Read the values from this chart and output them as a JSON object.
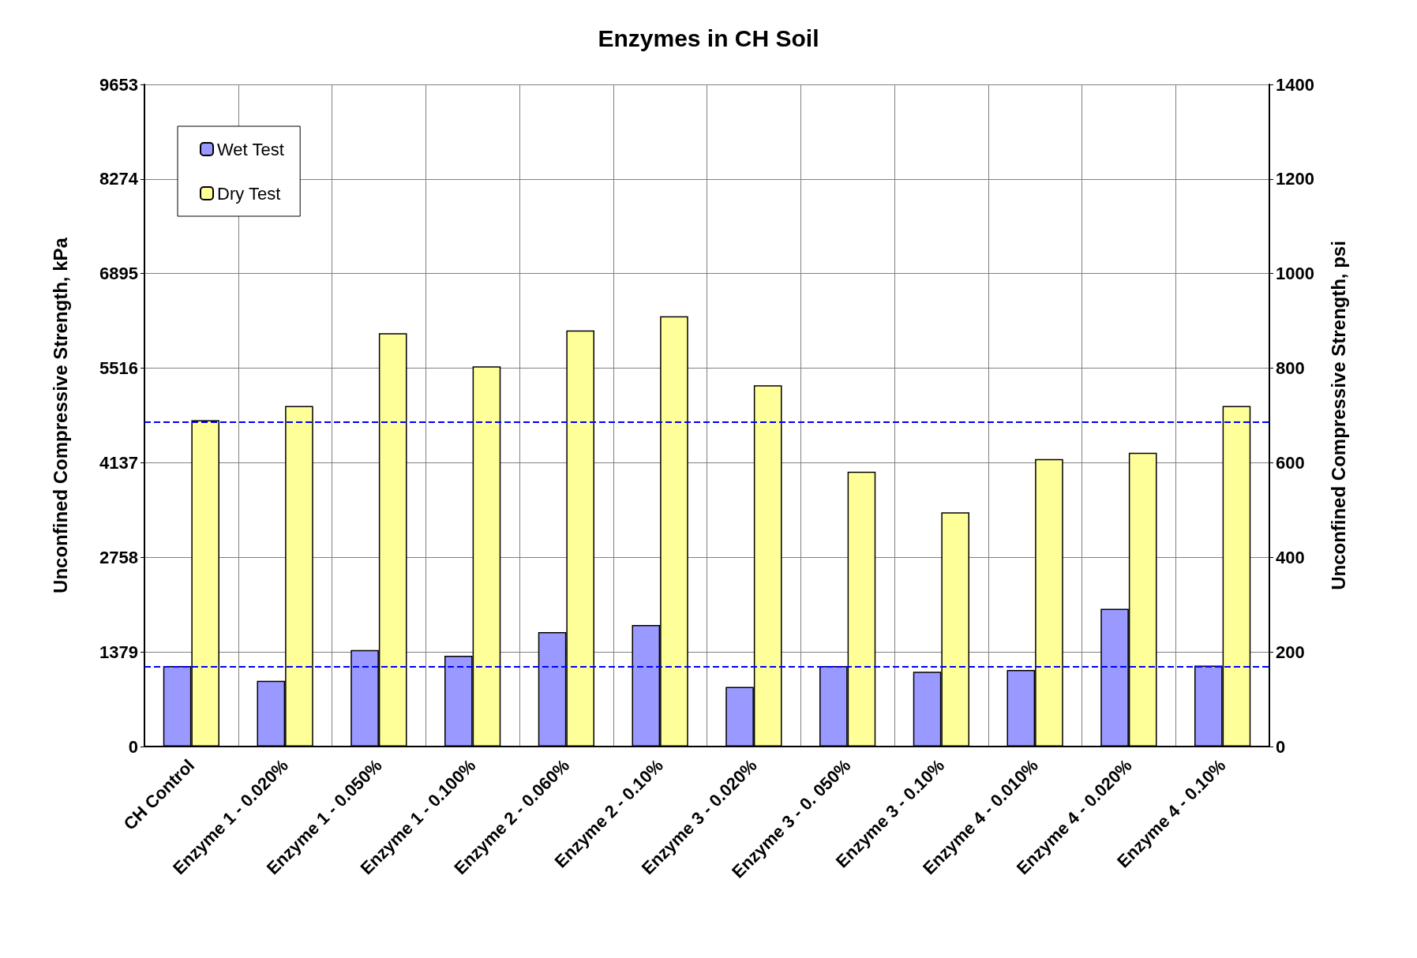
{
  "chart_data": {
    "type": "bar",
    "title": "Enzymes in CH Soil",
    "ylabel": "Unconfined Compressive Strength, kPa",
    "y2label": "Unconfined Compressive Strength, psi",
    "categories": [
      "CH Control",
      "Enzyme 1 - 0.020%",
      "Enzyme 1 - 0.050%",
      "Enzyme 1 - 0.100%",
      "Enzyme 2 - 0.060%",
      "Enzyme 2 - 0.10%",
      "Enzyme 3 - 0.020%",
      "Enzyme 3 - 0. 050%",
      "Enzyme 3 - 0.10%",
      "Enzyme 4 - 0.010%",
      "Enzyme 4 - 0.020%",
      "Enzyme 4 - 0.10%"
    ],
    "series": [
      {
        "name": "Wet Test",
        "color": "#9999ff",
        "axis": "y2",
        "values": [
          170,
          139,
          204,
          192,
          242,
          257,
          126,
          170,
          158,
          162,
          291,
          171
        ]
      },
      {
        "name": "Dry Test",
        "color": "#ffff99",
        "axis": "y2",
        "values": [
          690,
          720,
          874,
          804,
          880,
          910,
          764,
          581,
          495,
          608,
          621,
          720
        ]
      }
    ],
    "ylim": [
      0,
      9653
    ],
    "yticks": [
      0,
      1379,
      2758,
      4137,
      5516,
      6895,
      8274,
      9653
    ],
    "y2lim": [
      0,
      1400
    ],
    "y2ticks": [
      0,
      200,
      400,
      600,
      800,
      1000,
      1200,
      1400
    ],
    "ref_lines": [
      {
        "axis": "y2",
        "value": 686,
        "color": "#0000ff",
        "line_style": "dashed"
      },
      {
        "axis": "y2",
        "value": 169,
        "color": "#0000ff",
        "line_style": "dashed"
      }
    ],
    "grid": true,
    "legend": "top left"
  }
}
